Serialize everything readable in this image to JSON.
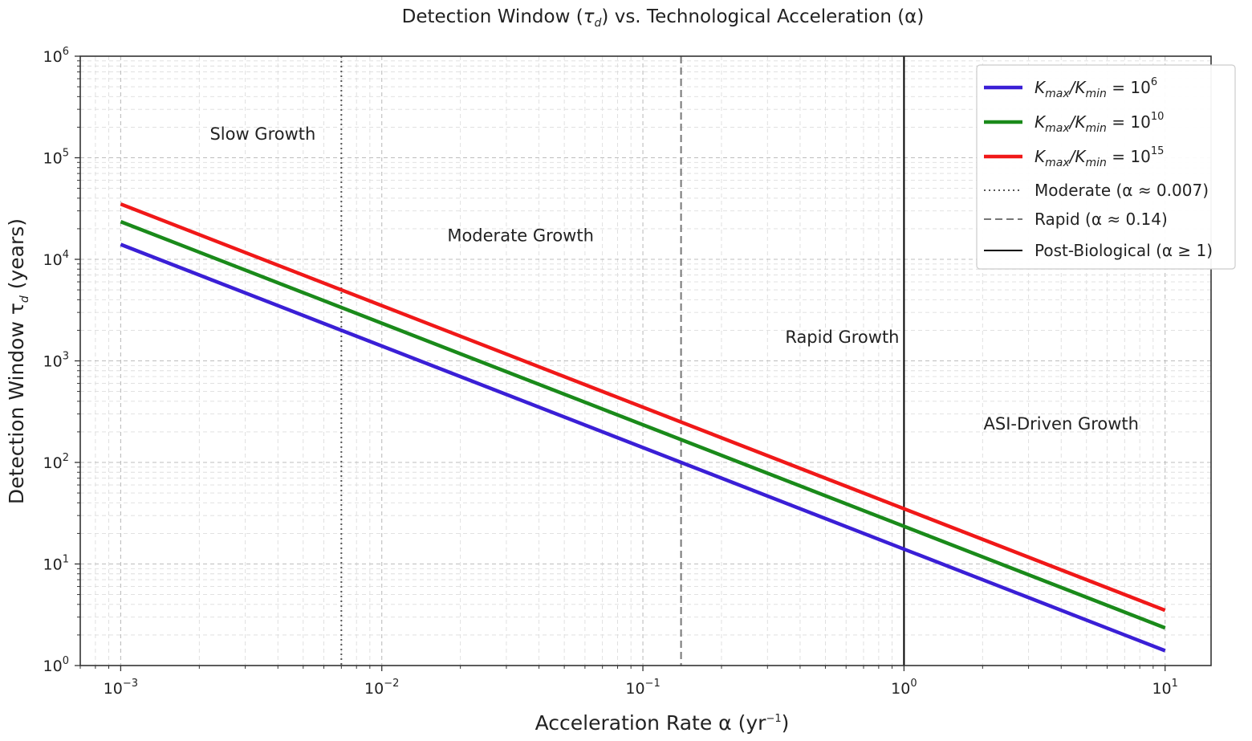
{
  "chart_data": {
    "type": "line",
    "scale": {
      "x": "log",
      "y": "log"
    },
    "title": {
      "prefix": "Detection Window (",
      "symbol": "τ",
      "sub": "d",
      "suffix": ") vs. Technological Acceleration (α)"
    },
    "xlabel": {
      "prefix": "Acceleration Rate α (yr",
      "sup": "−1",
      "suffix": ")"
    },
    "ylabel": {
      "prefix": "Detection Window τ",
      "sub": "d",
      "suffix": " (years)"
    },
    "xlim": [
      0.0007,
      15
    ],
    "ylim": [
      1,
      1000000
    ],
    "grid": true,
    "x_ticks": [
      {
        "base": "10",
        "exp": "−3",
        "value": 0.001
      },
      {
        "base": "10",
        "exp": "−2",
        "value": 0.01
      },
      {
        "base": "10",
        "exp": "−1",
        "value": 0.1
      },
      {
        "base": "10",
        "exp": "0",
        "value": 1
      },
      {
        "base": "10",
        "exp": "1",
        "value": 10
      }
    ],
    "y_ticks": [
      {
        "base": "10",
        "exp": "0",
        "value": 1
      },
      {
        "base": "10",
        "exp": "1",
        "value": 10
      },
      {
        "base": "10",
        "exp": "2",
        "value": 100
      },
      {
        "base": "10",
        "exp": "3",
        "value": 1000
      },
      {
        "base": "10",
        "exp": "4",
        "value": 10000
      },
      {
        "base": "10",
        "exp": "5",
        "value": 100000
      },
      {
        "base": "10",
        "exp": "6",
        "value": 1000000
      }
    ],
    "series": [
      {
        "label_pre": "K",
        "label_sub1": "max",
        "label_mid": "/K",
        "label_sub2": "min",
        "label_eq": " = 10",
        "label_exp": "6",
        "color": "#3a1fd6",
        "x": [
          0.001,
          10
        ],
        "values": [
          14000,
          1.4
        ]
      },
      {
        "label_pre": "K",
        "label_sub1": "max",
        "label_mid": "/K",
        "label_sub2": "min",
        "label_eq": " = 10",
        "label_exp": "10",
        "color": "#1a8a1a",
        "x": [
          0.001,
          10
        ],
        "values": [
          23500,
          2.35
        ]
      },
      {
        "label_pre": "K",
        "label_sub1": "max",
        "label_mid": "/K",
        "label_sub2": "min",
        "label_eq": " = 10",
        "label_exp": "15",
        "color": "#f01818",
        "x": [
          0.001,
          10
        ],
        "values": [
          35000,
          3.5
        ]
      }
    ],
    "vlines": [
      {
        "label": "Moderate (α ≈ 0.007)",
        "x": 0.007,
        "style": "dotted",
        "color": "#555555"
      },
      {
        "label": "Rapid (α ≈ 0.14)",
        "x": 0.14,
        "style": "dashed",
        "color": "#777777"
      },
      {
        "label": "Post-Biological (α ≥ 1)",
        "x": 1,
        "style": "solid",
        "color": "#000000"
      }
    ],
    "annotations": [
      {
        "text": "Slow Growth",
        "x": 0.0035,
        "y": 150000
      },
      {
        "text": "Moderate Growth",
        "x": 0.034,
        "y": 15000
      },
      {
        "text": "Rapid Growth",
        "x": 0.58,
        "y": 1500
      },
      {
        "text": "ASI-Driven Growth",
        "x": 4.0,
        "y": 210
      }
    ],
    "legend_position": "top-right"
  }
}
